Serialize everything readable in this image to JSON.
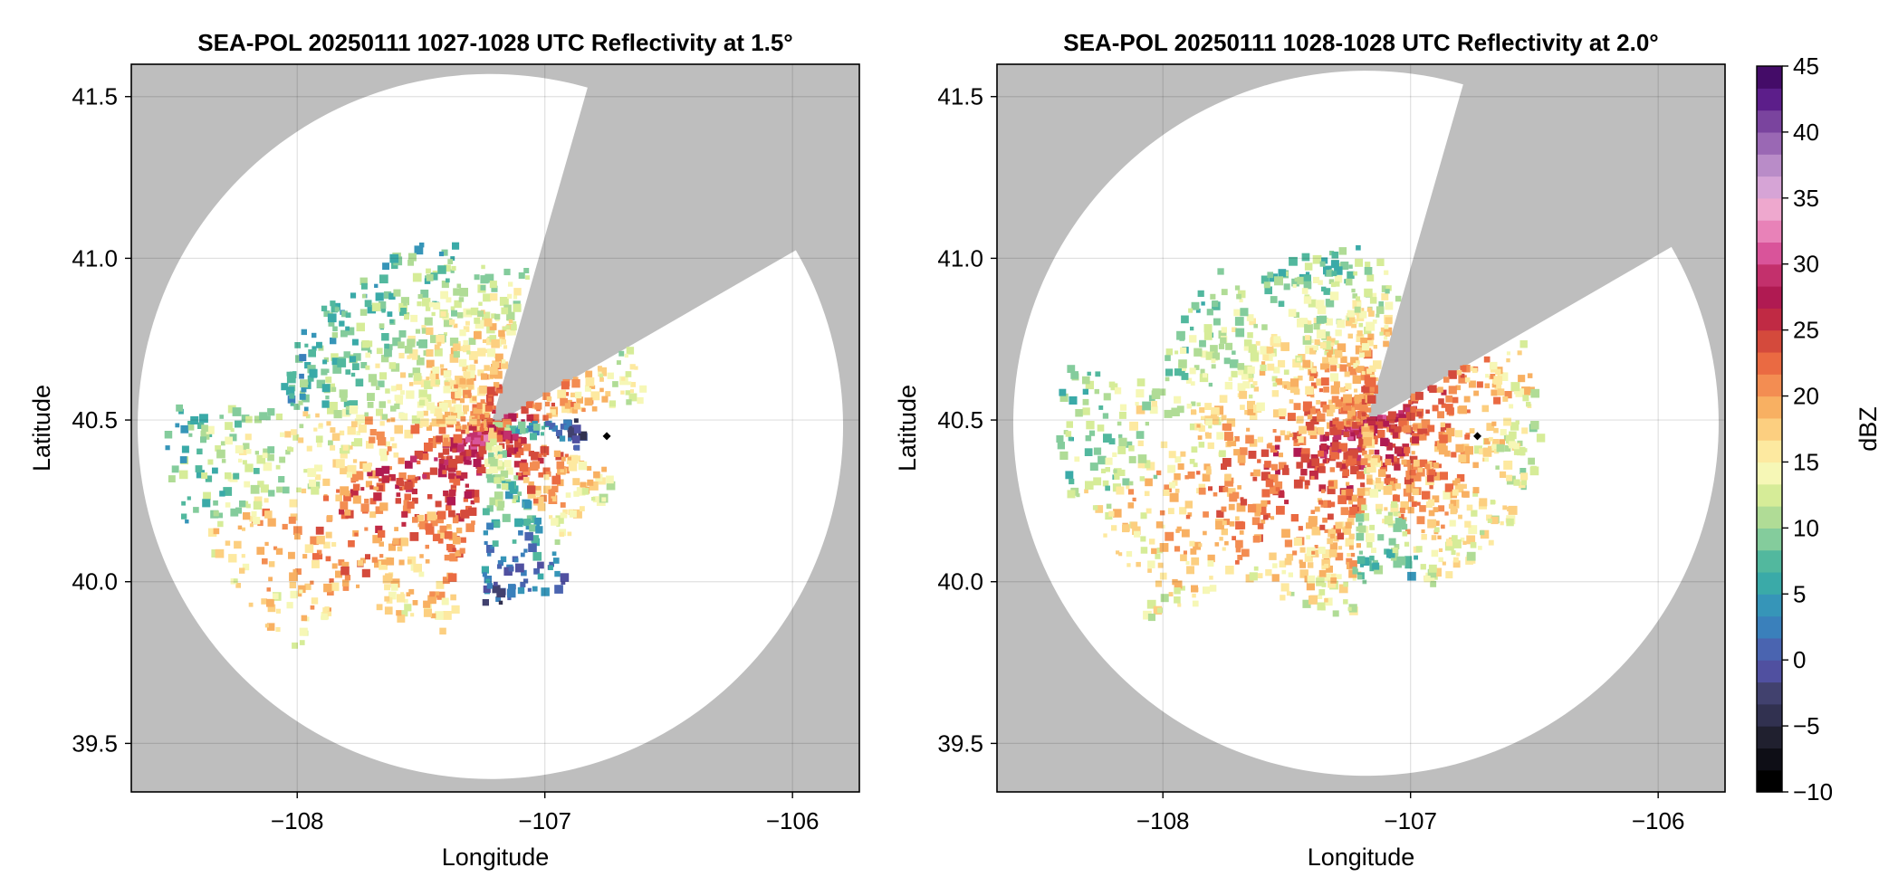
{
  "chart_data": [
    {
      "type": "heatmap",
      "title": "SEA-POL 20250111 1027-1028 UTC Reflectivity at 1.5°",
      "xlabel": "Longitude",
      "ylabel": "Latitude",
      "xlim": [
        -108.67,
        -105.73
      ],
      "ylim": [
        39.35,
        41.6
      ],
      "x_ticks": [
        -108,
        -107,
        -106
      ],
      "y_ticks": [
        39.5,
        40.0,
        40.5,
        41.0,
        41.5
      ],
      "x_tick_labels": [
        "−108",
        "−107",
        "−106"
      ],
      "y_tick_labels": [
        "39.5",
        "40.0",
        "40.5",
        "41.0",
        "41.5"
      ],
      "grid": true,
      "background_color": "#bebebe",
      "no_echo_color": "#ffffff",
      "radar_site": {
        "lon": -107.22,
        "lat": 40.48
      },
      "coverage_range_deg_lat": 1.09,
      "blocked_sectors_azimuth_deg": [
        [
          16,
          60
        ]
      ],
      "marker": {
        "lon": -106.75,
        "lat": 40.45
      },
      "echo_regions": [
        {
          "az_deg": 205,
          "width_deg": 30,
          "range_deg": 0.66,
          "dbz": 25
        },
        {
          "az_deg": 235,
          "width_deg": 30,
          "range_deg": 0.95,
          "dbz": 25
        },
        {
          "az_deg": 262,
          "width_deg": 25,
          "range_deg": 1.0,
          "dbz": 18
        },
        {
          "az_deg": 292,
          "width_deg": 35,
          "range_deg": 0.65,
          "dbz": 16
        },
        {
          "az_deg": 330,
          "width_deg": 40,
          "range_deg": 0.6,
          "dbz": 17
        },
        {
          "az_deg": 3,
          "width_deg": 22,
          "range_deg": 0.5,
          "dbz": 20
        },
        {
          "az_deg": 70,
          "width_deg": 22,
          "range_deg": 0.5,
          "dbz": 22
        },
        {
          "az_deg": 95,
          "width_deg": 18,
          "range_deg": 0.3,
          "dbz": 8
        },
        {
          "az_deg": 130,
          "width_deg": 40,
          "range_deg": 0.42,
          "dbz": 24
        },
        {
          "az_deg": 168,
          "width_deg": 30,
          "range_deg": 0.55,
          "dbz": 10
        }
      ]
    },
    {
      "type": "heatmap",
      "title": "SEA-POL 20250111 1028-1028 UTC Reflectivity at 2.0°",
      "xlabel": "Longitude",
      "ylabel": "Latitude",
      "xlim": [
        -108.67,
        -105.73
      ],
      "ylim": [
        39.35,
        41.6
      ],
      "x_ticks": [
        -108,
        -107,
        -106
      ],
      "y_ticks": [
        39.5,
        40.0,
        40.5,
        41.0,
        41.5
      ],
      "x_tick_labels": [
        "−108",
        "−107",
        "−106"
      ],
      "y_tick_labels": [
        "39.5",
        "40.0",
        "40.5",
        "41.0",
        "41.5"
      ],
      "grid": true,
      "background_color": "#bebebe",
      "no_echo_color": "#ffffff",
      "radar_site": {
        "lon": -107.18,
        "lat": 40.49
      },
      "coverage_range_deg_lat": 1.09,
      "blocked_sectors_azimuth_deg": [
        [
          16,
          60
        ]
      ],
      "marker": {
        "lon": -106.73,
        "lat": 40.45
      },
      "echo_regions": [
        {
          "az_deg": 200,
          "width_deg": 35,
          "range_deg": 0.6,
          "dbz": 24
        },
        {
          "az_deg": 240,
          "width_deg": 35,
          "range_deg": 0.9,
          "dbz": 24
        },
        {
          "az_deg": 268,
          "width_deg": 25,
          "range_deg": 0.95,
          "dbz": 19
        },
        {
          "az_deg": 300,
          "width_deg": 35,
          "range_deg": 0.65,
          "dbz": 19
        },
        {
          "az_deg": 340,
          "width_deg": 35,
          "range_deg": 0.55,
          "dbz": 18
        },
        {
          "az_deg": 5,
          "width_deg": 20,
          "range_deg": 0.5,
          "dbz": 20
        },
        {
          "az_deg": 72,
          "width_deg": 25,
          "range_deg": 0.55,
          "dbz": 25
        },
        {
          "az_deg": 100,
          "width_deg": 25,
          "range_deg": 0.55,
          "dbz": 22
        },
        {
          "az_deg": 140,
          "width_deg": 40,
          "range_deg": 0.55,
          "dbz": 23
        },
        {
          "az_deg": 172,
          "width_deg": 25,
          "range_deg": 0.5,
          "dbz": 17
        }
      ]
    }
  ],
  "colorbar": {
    "label": "dBZ",
    "min": -10,
    "max": 45,
    "step": 2.5,
    "ticks": [
      -10,
      -5,
      0,
      5,
      10,
      15,
      20,
      25,
      30,
      35,
      40,
      45
    ],
    "tick_labels": [
      "−10",
      "−5",
      "0",
      "5",
      "10",
      "15",
      "20",
      "25",
      "30",
      "35",
      "40",
      "45"
    ],
    "colors": [
      "#000000",
      "#0e0e16",
      "#20202f",
      "#313150",
      "#41416e",
      "#5050a0",
      "#4a64b0",
      "#3a80bb",
      "#3695b8",
      "#3aaaa8",
      "#52b89e",
      "#84cc9c",
      "#b0dc96",
      "#d6ec98",
      "#f6f7b6",
      "#fde9a0",
      "#fccf80",
      "#f8b062",
      "#f38d52",
      "#ea6a42",
      "#d44a3c",
      "#c02a44",
      "#b01a52",
      "#c3306c",
      "#d9549a",
      "#e882b8",
      "#eea8ce",
      "#d6a4d6",
      "#b98cc8",
      "#9a68b4",
      "#7a449e",
      "#5c1e8a",
      "#440c68"
    ]
  }
}
